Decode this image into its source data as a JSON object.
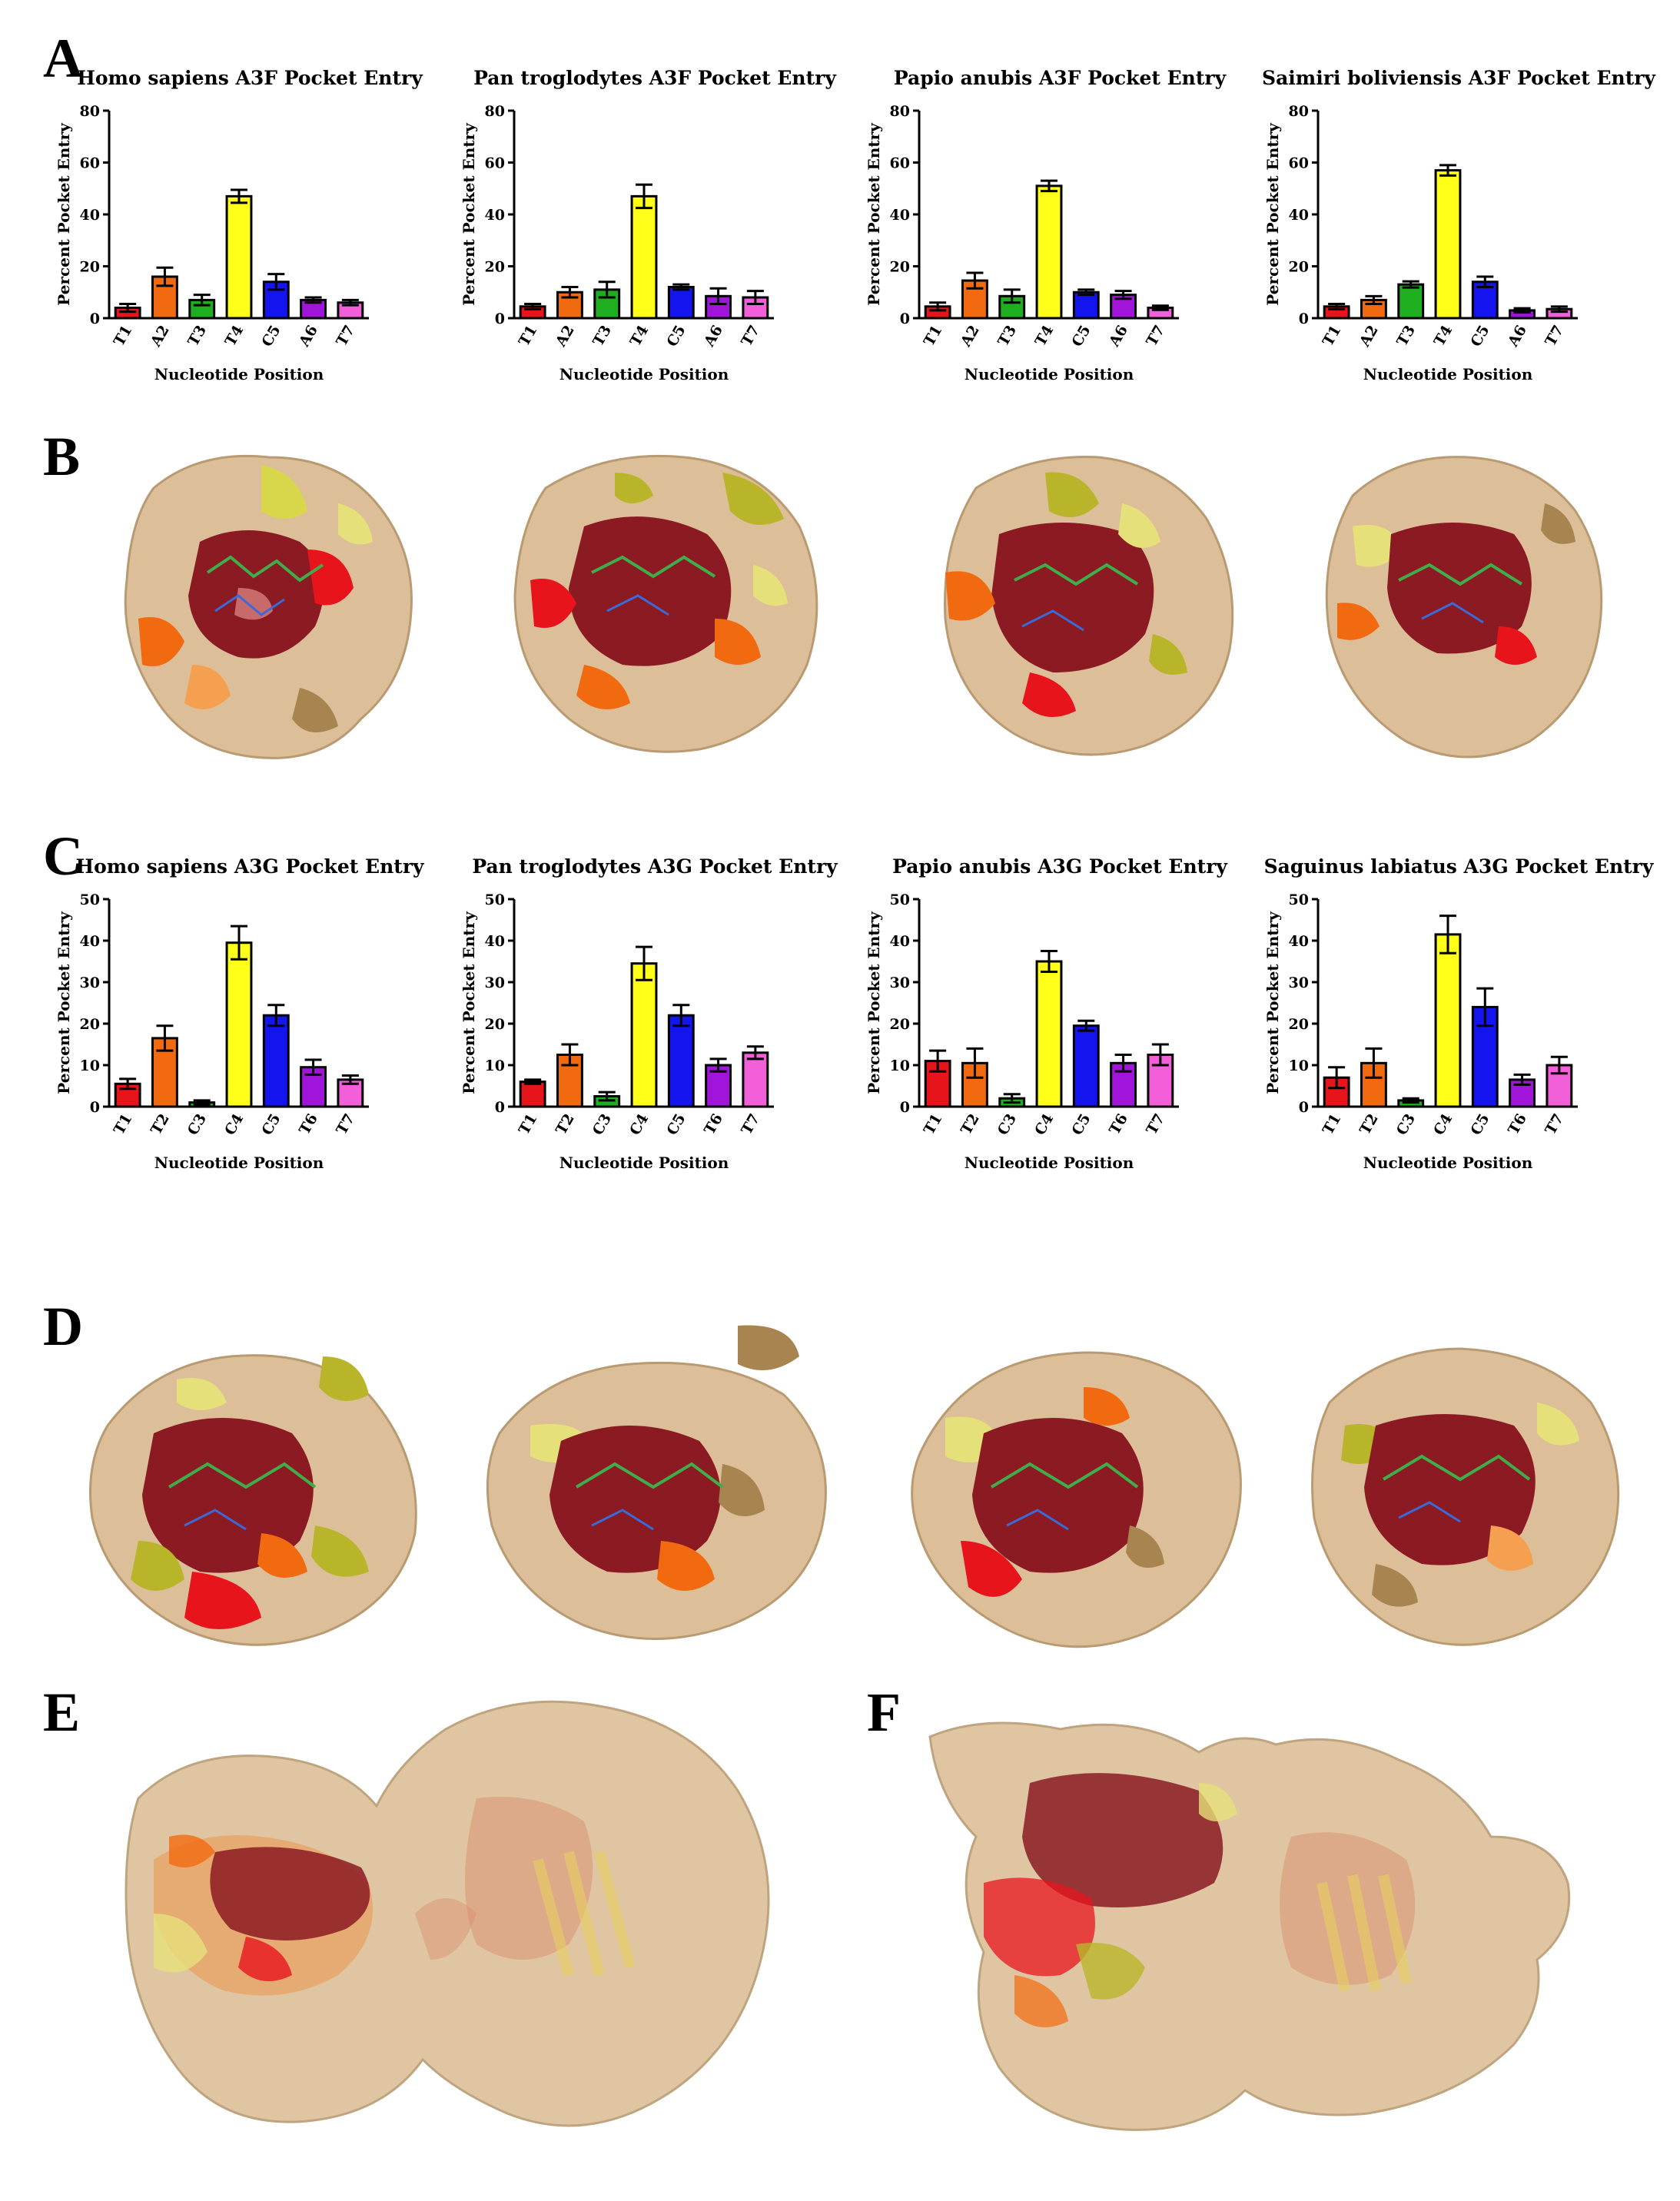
{
  "figure": {
    "panel_labels": [
      "A",
      "B",
      "C",
      "D",
      "E",
      "F"
    ],
    "colors": {
      "red": "#e8141c",
      "orange": "#f26a10",
      "green": "#1fae1f",
      "yellow": "#ffff1a",
      "blue": "#1414ee",
      "purple": "#a015d9",
      "pink": "#f25fd8",
      "dark_red": "#8b1a22",
      "wheat": "#dcbf98",
      "olive": "#b9b52a",
      "khaki": "#c8a56c"
    }
  },
  "chart_data": [
    {
      "type": "bar",
      "panel": "A",
      "title": "Homo sapiens A3F Pocket Entry",
      "xlabel": "Nucleotide Position",
      "ylabel": "Percent Pocket Entry",
      "ylim": [
        0,
        80
      ],
      "yticks": [
        0,
        20,
        40,
        60,
        80
      ],
      "categories": [
        "T1",
        "A2",
        "T3",
        "T4",
        "C5",
        "A6",
        "T7"
      ],
      "values": [
        4,
        16,
        7,
        47,
        14,
        7,
        6
      ],
      "errors": [
        1.5,
        3.5,
        2,
        2.5,
        3,
        1,
        1
      ],
      "bar_colors": [
        "red",
        "orange",
        "green",
        "yellow",
        "blue",
        "purple",
        "pink"
      ]
    },
    {
      "type": "bar",
      "panel": "A",
      "title": "Pan troglodytes A3F Pocket Entry",
      "xlabel": "Nucleotide Position",
      "ylabel": "Percent Pocket Entry",
      "ylim": [
        0,
        80
      ],
      "yticks": [
        0,
        20,
        40,
        60,
        80
      ],
      "categories": [
        "T1",
        "A2",
        "T3",
        "T4",
        "C5",
        "A6",
        "T7"
      ],
      "values": [
        4.5,
        10,
        11,
        47,
        12,
        8.5,
        8
      ],
      "errors": [
        1,
        2,
        3,
        4.5,
        1,
        3,
        2.5
      ],
      "bar_colors": [
        "red",
        "orange",
        "green",
        "yellow",
        "blue",
        "purple",
        "pink"
      ]
    },
    {
      "type": "bar",
      "panel": "A",
      "title": "Papio anubis A3F Pocket Entry",
      "xlabel": "Nucleotide Position",
      "ylabel": "Percent Pocket Entry",
      "ylim": [
        0,
        80
      ],
      "yticks": [
        0,
        20,
        40,
        60,
        80
      ],
      "categories": [
        "T1",
        "A2",
        "T3",
        "T4",
        "C5",
        "A6",
        "T7"
      ],
      "values": [
        4.5,
        14.5,
        8.5,
        51,
        10,
        9,
        4
      ],
      "errors": [
        1.5,
        3,
        2.5,
        2,
        1,
        1.5,
        0.8
      ],
      "bar_colors": [
        "red",
        "orange",
        "green",
        "yellow",
        "blue",
        "purple",
        "pink"
      ]
    },
    {
      "type": "bar",
      "panel": "A",
      "title": "Saimiri boliviensis A3F Pocket Entry",
      "xlabel": "Nucleotide Position",
      "ylabel": "Percent Pocket Entry",
      "ylim": [
        0,
        80
      ],
      "yticks": [
        0,
        20,
        40,
        60,
        80
      ],
      "categories": [
        "T1",
        "A2",
        "T3",
        "T4",
        "C5",
        "A6",
        "T7"
      ],
      "values": [
        4.5,
        7,
        13,
        57,
        14,
        3,
        3.5
      ],
      "errors": [
        1,
        1.5,
        1.2,
        2,
        2,
        0.8,
        1
      ],
      "bar_colors": [
        "red",
        "orange",
        "green",
        "yellow",
        "blue",
        "purple",
        "pink"
      ]
    },
    {
      "type": "bar",
      "panel": "C",
      "title": "Homo sapiens A3G Pocket Entry",
      "xlabel": "Nucleotide Position",
      "ylabel": "Percent Pocket Entry",
      "ylim": [
        0,
        50
      ],
      "yticks": [
        0,
        10,
        20,
        30,
        40,
        50
      ],
      "categories": [
        "T1",
        "T2",
        "C3",
        "C4",
        "C5",
        "T6",
        "T7"
      ],
      "values": [
        5.5,
        16.5,
        1,
        39.5,
        22,
        9.5,
        6.5
      ],
      "errors": [
        1.2,
        3,
        0.5,
        4,
        2.5,
        1.8,
        1
      ],
      "bar_colors": [
        "red",
        "orange",
        "green",
        "yellow",
        "blue",
        "purple",
        "pink"
      ]
    },
    {
      "type": "bar",
      "panel": "C",
      "title": "Pan troglodytes A3G Pocket Entry",
      "xlabel": "Nucleotide Position",
      "ylabel": "Percent Pocket Entry",
      "ylim": [
        0,
        50
      ],
      "yticks": [
        0,
        10,
        20,
        30,
        40,
        50
      ],
      "categories": [
        "T1",
        "T2",
        "C3",
        "C4",
        "C5",
        "T6",
        "T7"
      ],
      "values": [
        6,
        12.5,
        2.5,
        34.5,
        22,
        10,
        13
      ],
      "errors": [
        0.5,
        2.5,
        1,
        4,
        2.5,
        1.5,
        1.5
      ],
      "bar_colors": [
        "red",
        "orange",
        "green",
        "yellow",
        "blue",
        "purple",
        "pink"
      ]
    },
    {
      "type": "bar",
      "panel": "C",
      "title": "Papio anubis A3G Pocket Entry",
      "xlabel": "Nucleotide Position",
      "ylabel": "Percent Pocket Entry",
      "ylim": [
        0,
        50
      ],
      "yticks": [
        0,
        10,
        20,
        30,
        40,
        50
      ],
      "categories": [
        "T1",
        "T2",
        "C3",
        "C4",
        "C5",
        "T6",
        "T7"
      ],
      "values": [
        11,
        10.5,
        2,
        35,
        19.5,
        10.5,
        12.5
      ],
      "errors": [
        2.5,
        3.5,
        1,
        2.5,
        1.2,
        2,
        2.5
      ],
      "bar_colors": [
        "red",
        "orange",
        "green",
        "yellow",
        "blue",
        "purple",
        "pink"
      ]
    },
    {
      "type": "bar",
      "panel": "C",
      "title": "Saguinus labiatus A3G Pocket Entry",
      "xlabel": "Nucleotide Position",
      "ylabel": "Percent Pocket Entry",
      "ylim": [
        0,
        50
      ],
      "yticks": [
        0,
        10,
        20,
        30,
        40,
        50
      ],
      "categories": [
        "T1",
        "T2",
        "C3",
        "C4",
        "C5",
        "T6",
        "T7"
      ],
      "values": [
        7,
        10.5,
        1.5,
        41.5,
        24,
        6.5,
        10
      ],
      "errors": [
        2.5,
        3.5,
        0.5,
        4.5,
        4.5,
        1.2,
        2
      ],
      "bar_colors": [
        "red",
        "orange",
        "green",
        "yellow",
        "blue",
        "purple",
        "pink"
      ]
    }
  ]
}
